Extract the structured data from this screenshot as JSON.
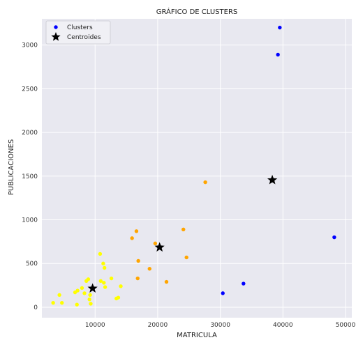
{
  "chart_data": {
    "type": "scatter",
    "title": "GRÁFICO DE CLUSTERS",
    "xlabel": "MATRICULA",
    "ylabel": "PUBLICACIONES",
    "xlim": [
      1500,
      51000
    ],
    "ylim": [
      -120,
      3300
    ],
    "xticks": [
      10000,
      20000,
      30000,
      40000,
      50000
    ],
    "yticks": [
      0,
      500,
      1000,
      1500,
      2000,
      2500,
      3000
    ],
    "grid": true,
    "background_color": "#e8e8f0",
    "legend": {
      "placement": "top-left",
      "entries": [
        {
          "label": "Clusters",
          "marker": "dot",
          "color": "#0000ff"
        },
        {
          "label": "Centroides",
          "marker": "star",
          "color": "#000000"
        }
      ]
    },
    "series": [
      {
        "color": "#0000ff",
        "points": [
          {
            "x": 39500,
            "y": 3200
          },
          {
            "x": 39200,
            "y": 2890
          },
          {
            "x": 48200,
            "y": 800
          },
          {
            "x": 30400,
            "y": 160
          },
          {
            "x": 33700,
            "y": 270
          }
        ]
      },
      {
        "color": "#ffa500",
        "points": [
          {
            "x": 27600,
            "y": 1430
          },
          {
            "x": 24100,
            "y": 890
          },
          {
            "x": 16600,
            "y": 870
          },
          {
            "x": 15900,
            "y": 790
          },
          {
            "x": 19600,
            "y": 730
          },
          {
            "x": 24600,
            "y": 570
          },
          {
            "x": 16900,
            "y": 530
          },
          {
            "x": 18700,
            "y": 440
          },
          {
            "x": 16800,
            "y": 330
          },
          {
            "x": 21400,
            "y": 290
          }
        ]
      },
      {
        "color": "#ffff00",
        "points": [
          {
            "x": 10800,
            "y": 610
          },
          {
            "x": 11300,
            "y": 500
          },
          {
            "x": 11500,
            "y": 450
          },
          {
            "x": 12600,
            "y": 330
          },
          {
            "x": 10900,
            "y": 300
          },
          {
            "x": 11400,
            "y": 280
          },
          {
            "x": 8600,
            "y": 300
          },
          {
            "x": 8900,
            "y": 320
          },
          {
            "x": 14100,
            "y": 240
          },
          {
            "x": 11600,
            "y": 230
          },
          {
            "x": 7900,
            "y": 220
          },
          {
            "x": 7200,
            "y": 190
          },
          {
            "x": 6800,
            "y": 170
          },
          {
            "x": 8300,
            "y": 160
          },
          {
            "x": 9200,
            "y": 140
          },
          {
            "x": 4300,
            "y": 140
          },
          {
            "x": 13700,
            "y": 110
          },
          {
            "x": 9100,
            "y": 90
          },
          {
            "x": 13400,
            "y": 100
          },
          {
            "x": 3300,
            "y": 50
          },
          {
            "x": 4700,
            "y": 50
          },
          {
            "x": 7100,
            "y": 30
          },
          {
            "x": 9300,
            "y": 40
          }
        ]
      }
    ],
    "centroids": {
      "color": "#000000",
      "points": [
        {
          "x": 38300,
          "y": 1455
        },
        {
          "x": 20300,
          "y": 685
        },
        {
          "x": 9600,
          "y": 215
        }
      ]
    }
  }
}
